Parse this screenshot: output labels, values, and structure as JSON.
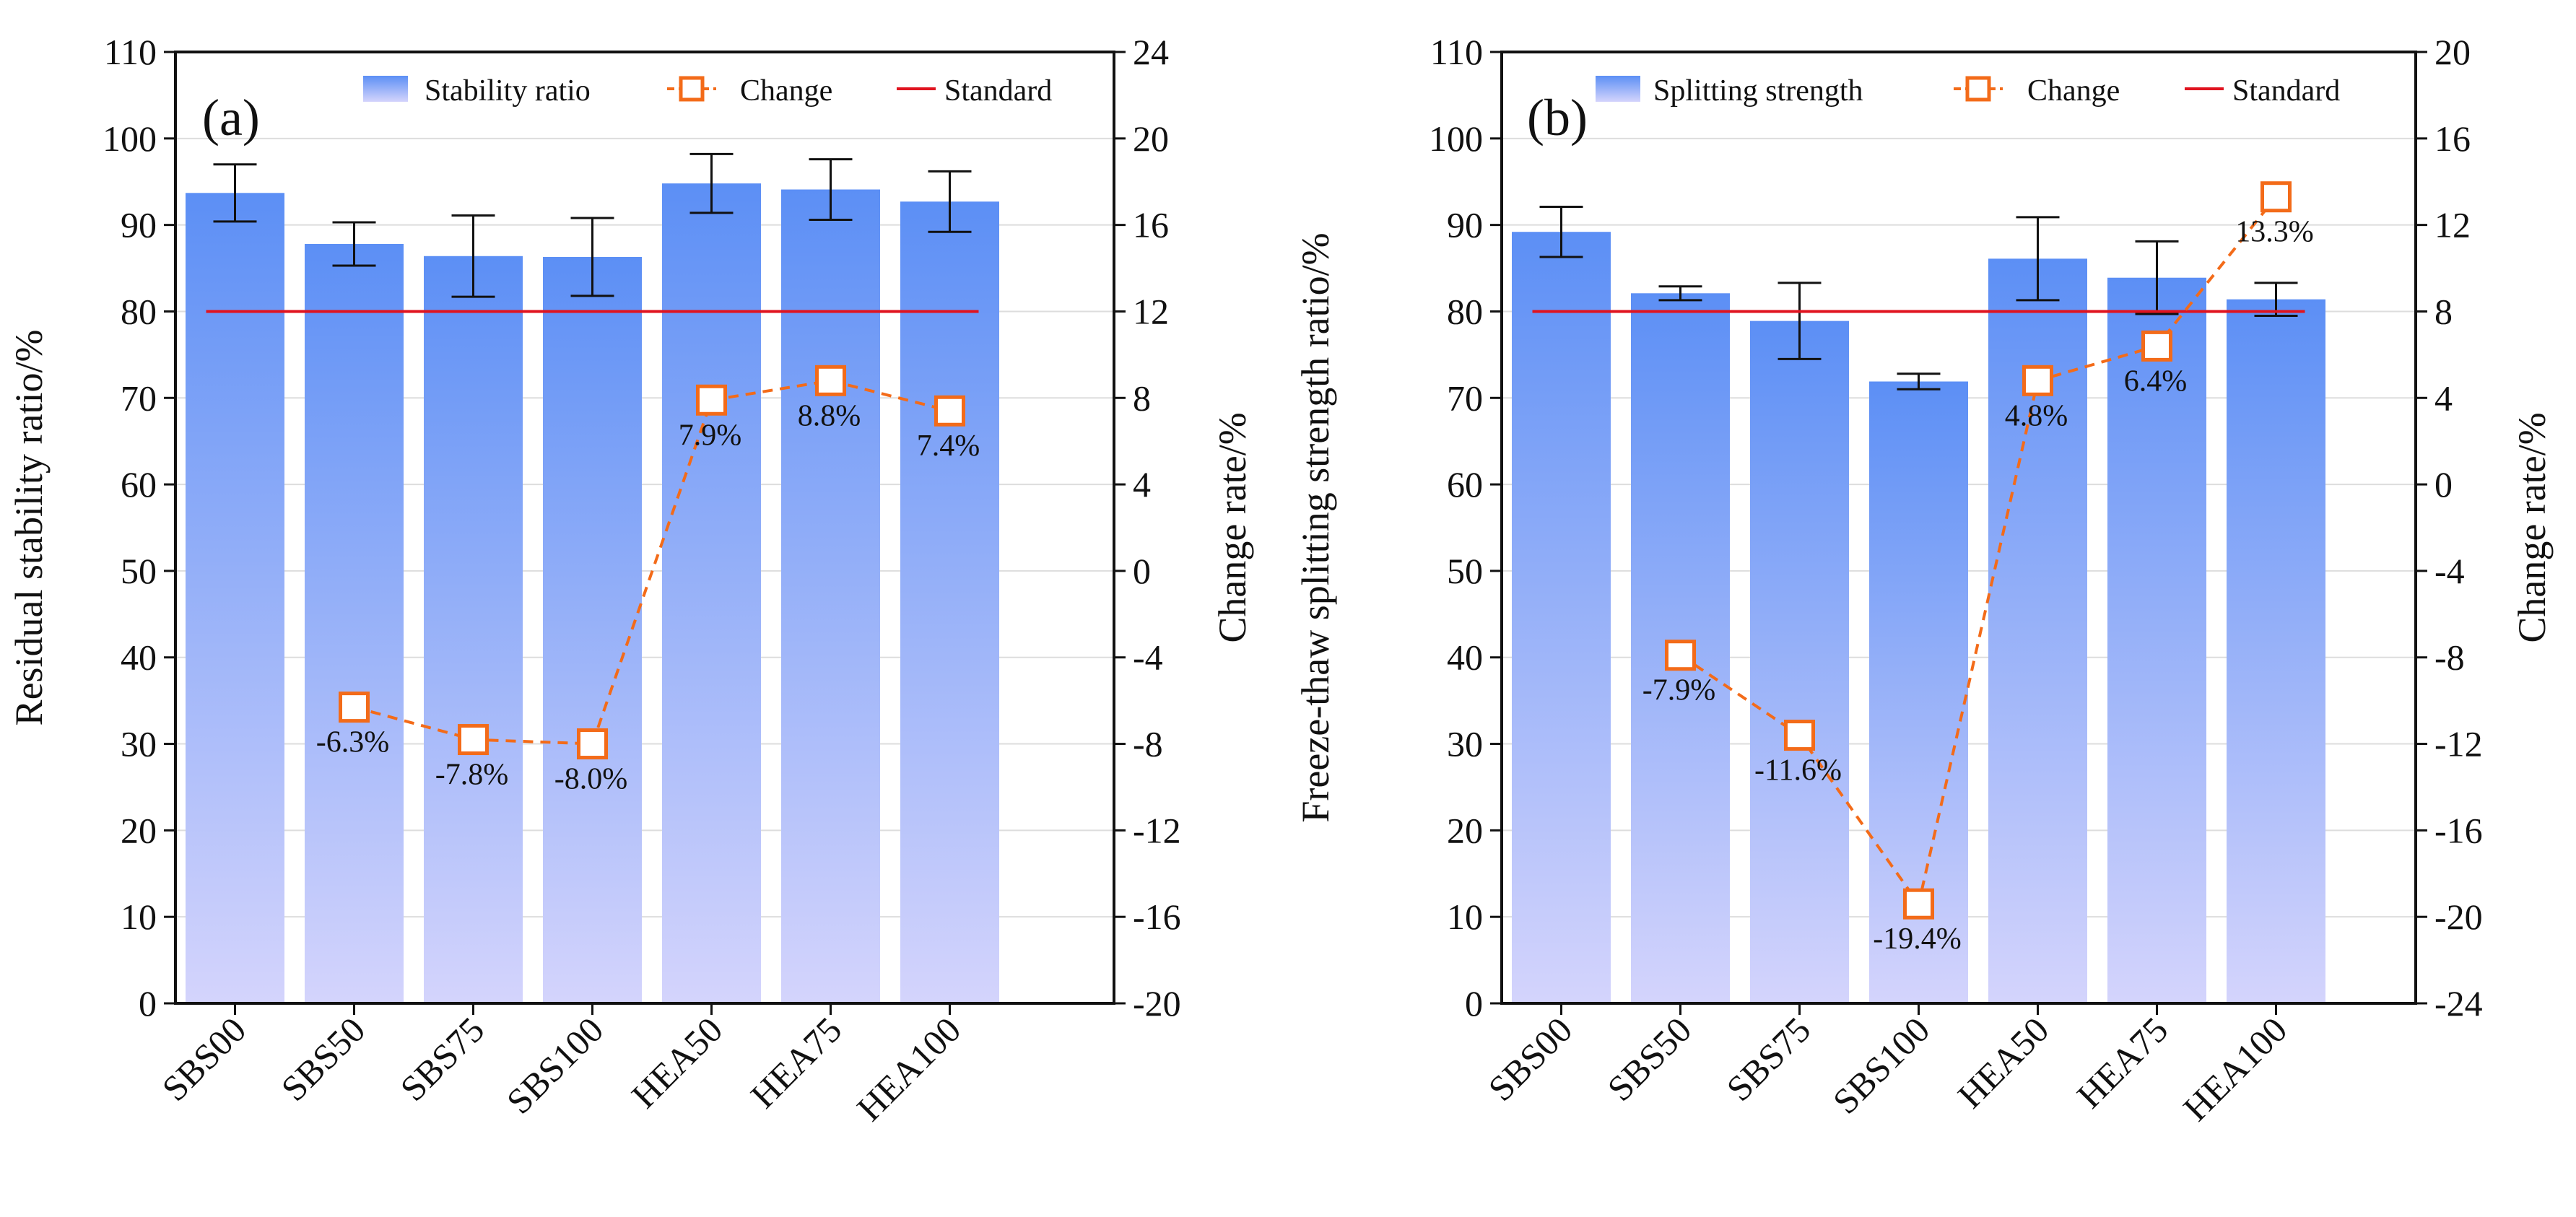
{
  "chart_data": [
    {
      "type": "bar",
      "panel_label": "(a)",
      "categories": [
        "SBS00",
        "SBS50",
        "SBS75",
        "SBS100",
        "HEA50",
        "HEA75",
        "HEA100"
      ],
      "left_axis": {
        "label": "Residual stability ratio/%",
        "ylim": [
          0,
          110
        ],
        "ticks": [
          "0",
          "10",
          "20",
          "30",
          "40",
          "50",
          "60",
          "70",
          "80",
          "90",
          "100",
          "110"
        ]
      },
      "right_axis": {
        "label": "Change rate/%",
        "ylim": [
          -20,
          24
        ],
        "ticks": [
          "-20",
          "-16",
          "-12",
          "-8",
          "-4",
          "0",
          "4",
          "8",
          "12",
          "16",
          "20",
          "24"
        ]
      },
      "series": [
        {
          "name": "Stability ratio",
          "kind": "bar",
          "axis": "left",
          "values": [
            93.7,
            87.8,
            86.4,
            86.3,
            94.8,
            94.1,
            92.7
          ],
          "errors": [
            3.3,
            2.5,
            4.7,
            4.5,
            3.4,
            3.5,
            3.5
          ]
        },
        {
          "name": "Change",
          "kind": "line-marker",
          "axis": "right",
          "points": [
            {
              "category": "SBS50",
              "value": -6.3,
              "label": "-6.3%"
            },
            {
              "category": "SBS75",
              "value": -7.8,
              "label": "-7.8%"
            },
            {
              "category": "SBS100",
              "value": -8.0,
              "label": "-8.0%"
            },
            {
              "category": "HEA50",
              "value": 7.9,
              "label": "7.9%"
            },
            {
              "category": "HEA75",
              "value": 8.8,
              "label": "8.8%"
            },
            {
              "category": "HEA100",
              "value": 7.4,
              "label": "7.4%"
            }
          ]
        },
        {
          "name": "Standard",
          "kind": "reference-line",
          "axis": "left",
          "value": 80
        }
      ],
      "legend": [
        "Stability ratio",
        "Change",
        "Standard"
      ],
      "colors": {
        "bar_top": "#5c8ff5",
        "bar_bottom": "#d4d4fc",
        "change": "#f36b19",
        "standard": "#e0131f"
      }
    },
    {
      "type": "bar",
      "panel_label": "(b)",
      "categories": [
        "SBS00",
        "SBS50",
        "SBS75",
        "SBS100",
        "HEA50",
        "HEA75",
        "HEA100"
      ],
      "left_axis": {
        "label": "Freeze-thaw splitting strength ratio/%",
        "ylim": [
          0,
          110
        ],
        "ticks": [
          "0",
          "10",
          "20",
          "30",
          "40",
          "50",
          "60",
          "70",
          "80",
          "90",
          "100",
          "110"
        ]
      },
      "right_axis": {
        "label": "Change rate/%",
        "ylim": [
          -24,
          20
        ],
        "ticks": [
          "-24",
          "-20",
          "-16",
          "-12",
          "-8",
          "-4",
          "0",
          "4",
          "8",
          "12",
          "16",
          "20"
        ]
      },
      "series": [
        {
          "name": "Splitting strength",
          "kind": "bar",
          "axis": "left",
          "values": [
            89.2,
            82.1,
            78.9,
            71.9,
            86.1,
            83.9,
            81.4
          ],
          "errors": [
            2.9,
            0.8,
            4.4,
            0.9,
            4.8,
            4.2,
            1.9
          ]
        },
        {
          "name": "Change",
          "kind": "line-marker",
          "axis": "right",
          "points": [
            {
              "category": "SBS50",
              "value": -7.9,
              "label": "-7.9%"
            },
            {
              "category": "SBS75",
              "value": -11.6,
              "label": "-11.6%"
            },
            {
              "category": "SBS100",
              "value": -19.4,
              "label": "-19.4%"
            },
            {
              "category": "HEA50",
              "value": 4.8,
              "label": "4.8%"
            },
            {
              "category": "HEA75",
              "value": 6.4,
              "label": "6.4%"
            },
            {
              "category": "HEA100",
              "value": 13.3,
              "label": "13.3%"
            }
          ]
        },
        {
          "name": "Standard",
          "kind": "reference-line",
          "axis": "left",
          "value": 80
        }
      ],
      "legend": [
        "Splitting strength",
        "Change",
        "Standard"
      ],
      "colors": {
        "bar_top": "#5c8ff5",
        "bar_bottom": "#d4d4fc",
        "change": "#f36b19",
        "standard": "#e0131f"
      }
    }
  ]
}
